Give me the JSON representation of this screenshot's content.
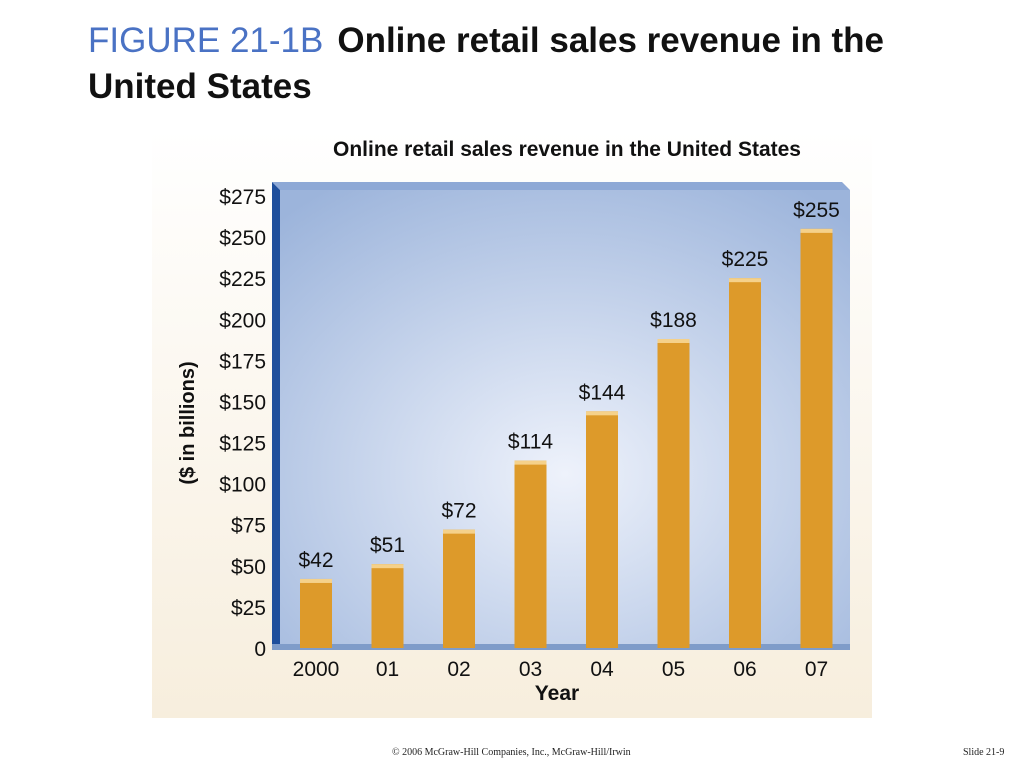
{
  "slide": {
    "figure_label": "FIGURE 21-1B",
    "title": "Online retail sales revenue in the United States",
    "copyright": "© 2006 McGraw-Hill Companies, Inc., McGraw-Hill/Irwin",
    "slide_number": "Slide 21-9"
  },
  "colors": {
    "bar": "#dd9a2a",
    "bar_top": "#f5d18a",
    "plot_bg_center": "#eef2fb",
    "plot_bg_edge": "#9cb4db",
    "axis_wall": "#1f4f9c",
    "chart_bg": "#f7eedd"
  },
  "chart_data": {
    "type": "bar",
    "title": "Online retail sales revenue in the United States",
    "xlabel": "Year",
    "ylabel": "($ in billions)",
    "categories": [
      "2000",
      "01",
      "02",
      "03",
      "04",
      "05",
      "06",
      "07"
    ],
    "values": [
      42,
      51,
      72,
      114,
      144,
      188,
      225,
      255
    ],
    "value_labels": [
      "$42",
      "$51",
      "$72",
      "$114",
      "$144",
      "$188",
      "$225",
      "$255"
    ],
    "yticks": [
      0,
      25,
      50,
      75,
      100,
      125,
      150,
      175,
      200,
      225,
      250,
      275
    ],
    "ytick_labels": [
      "0",
      "$25",
      "$50",
      "$75",
      "$100",
      "$125",
      "$150",
      "$175",
      "$200",
      "$225",
      "$250",
      "$275"
    ],
    "ylim": [
      0,
      275
    ],
    "grid": false,
    "legend": "none"
  }
}
